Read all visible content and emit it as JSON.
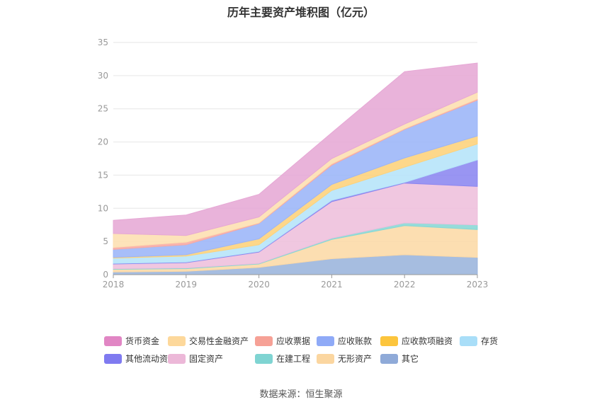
{
  "title": "历年主要资产堆积图（亿元）",
  "source": "数据来源：恒生聚源",
  "chart_data": {
    "type": "area",
    "stacked": true,
    "title": "历年主要资产堆积图（亿元）",
    "x": [
      "2018",
      "2019",
      "2020",
      "2021",
      "2022",
      "2023"
    ],
    "yticks": [
      "0",
      "5",
      "10",
      "15",
      "20",
      "25",
      "30",
      "35"
    ],
    "ylim": [
      0,
      35
    ],
    "grid": true,
    "legend_position": "bottom",
    "series": [
      {
        "name": "其它",
        "color": "#9ab4dc",
        "values": [
          0.4,
          0.5,
          1.1,
          2.4,
          3.0,
          2.6
        ]
      },
      {
        "name": "无形资产",
        "color": "#fcd9a6",
        "values": [
          0.4,
          0.4,
          0.5,
          2.9,
          4.4,
          4.2
        ]
      },
      {
        "name": "在建工程",
        "color": "#87d7d5",
        "values": [
          0.1,
          0.1,
          0.1,
          0.2,
          0.4,
          0.7
        ]
      },
      {
        "name": "固定资产",
        "color": "#eebfdc",
        "values": [
          0.7,
          0.8,
          1.7,
          5.5,
          6.0,
          5.8
        ]
      },
      {
        "name": "其他流动资产",
        "color": "#8b86f0",
        "values": [
          0.1,
          0.1,
          0.1,
          0.2,
          0.1,
          4.0
        ]
      },
      {
        "name": "存货",
        "color": "#b5e4f9",
        "values": [
          0.8,
          0.9,
          1.0,
          1.5,
          2.3,
          2.4
        ]
      },
      {
        "name": "应收款项融资",
        "color": "#fdd27a",
        "values": [
          0.1,
          0.2,
          0.9,
          0.9,
          1.4,
          1.2
        ]
      },
      {
        "name": "应收账款",
        "color": "#9bb5f8",
        "values": [
          1.2,
          1.5,
          2.3,
          2.9,
          4.3,
          5.4
        ]
      },
      {
        "name": "应收票据",
        "color": "#f8aaa3",
        "values": [
          0.3,
          0.4,
          0.1,
          0.2,
          0.1,
          0.2
        ]
      },
      {
        "name": "交易性金融资产",
        "color": "#fddfb0",
        "values": [
          2.1,
          1.0,
          0.9,
          0.8,
          0.7,
          1.0
        ]
      },
      {
        "name": "货币资金",
        "color": "#e6a8d5",
        "values": [
          2.0,
          3.1,
          3.4,
          3.9,
          7.9,
          4.4
        ]
      }
    ]
  },
  "legend": [
    {
      "label": "货币资金",
      "color": "#e186c4"
    },
    {
      "label": "交易性金融资产",
      "color": "#fdd89b"
    },
    {
      "label": "应收票据",
      "color": "#f6a196"
    },
    {
      "label": "应收账款",
      "color": "#8faaf7"
    },
    {
      "label": "应收款项融资",
      "color": "#fcc53d"
    },
    {
      "label": "存货",
      "color": "#a9def8"
    },
    {
      "label": "其他流动资产",
      "color": "#7f7af0"
    },
    {
      "label": "固定资产",
      "color": "#ecb8d8"
    },
    {
      "label": "在建工程",
      "color": "#7fd4d2"
    },
    {
      "label": "无形资产",
      "color": "#fbd6a0"
    },
    {
      "label": "其它",
      "color": "#8faad8"
    }
  ]
}
